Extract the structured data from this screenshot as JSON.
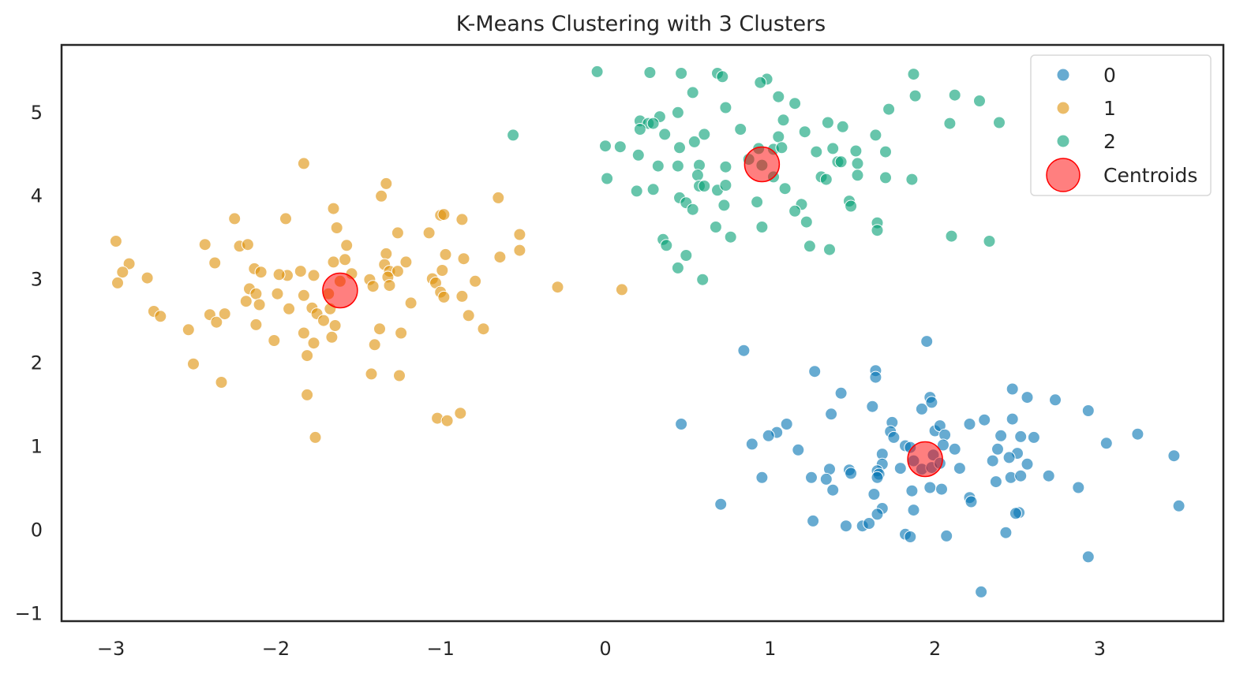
{
  "chart_data": {
    "type": "scatter",
    "title": "K-Means Clustering with 3 Clusters",
    "xlabel": "",
    "ylabel": "",
    "xlim": [
      -3.3,
      3.75
    ],
    "ylim": [
      -1.1,
      5.8
    ],
    "xticks": [
      -3,
      -2,
      -1,
      0,
      1,
      2,
      3
    ],
    "xtick_labels": [
      "−3",
      "−2",
      "−1",
      "0",
      "1",
      "2",
      "3"
    ],
    "yticks": [
      -1,
      0,
      1,
      2,
      3,
      4,
      5
    ],
    "ytick_labels": [
      "−1",
      "0",
      "1",
      "2",
      "3",
      "4",
      "5"
    ],
    "grid": false,
    "legend_position": "top-right",
    "series": [
      {
        "name": "0",
        "label": "0",
        "color": "#0173b2",
        "points": [
          [
            1.95,
            2.25
          ],
          [
            0.84,
            2.14
          ],
          [
            1.27,
            1.89
          ],
          [
            1.64,
            1.9
          ],
          [
            1.64,
            1.82
          ],
          [
            2.47,
            1.68
          ],
          [
            2.56,
            1.58
          ],
          [
            1.43,
            1.63
          ],
          [
            1.97,
            1.58
          ],
          [
            1.98,
            1.52
          ],
          [
            1.92,
            1.44
          ],
          [
            1.62,
            1.47
          ],
          [
            2.73,
            1.55
          ],
          [
            2.93,
            1.42
          ],
          [
            1.37,
            1.38
          ],
          [
            2.3,
            1.31
          ],
          [
            2.47,
            1.32
          ],
          [
            0.46,
            1.26
          ],
          [
            1.1,
            1.26
          ],
          [
            1.74,
            1.28
          ],
          [
            2.0,
            1.18
          ],
          [
            2.21,
            1.26
          ],
          [
            2.03,
            1.24
          ],
          [
            1.04,
            1.16
          ],
          [
            0.99,
            1.12
          ],
          [
            1.73,
            1.17
          ],
          [
            1.75,
            1.1
          ],
          [
            2.06,
            1.13
          ],
          [
            2.4,
            1.12
          ],
          [
            2.52,
            1.11
          ],
          [
            2.6,
            1.1
          ],
          [
            3.23,
            1.14
          ],
          [
            0.89,
            1.02
          ],
          [
            1.17,
            0.95
          ],
          [
            1.82,
            1.0
          ],
          [
            1.85,
            0.98
          ],
          [
            2.05,
            1.01
          ],
          [
            1.99,
            0.89
          ],
          [
            1.87,
            0.82
          ],
          [
            1.68,
            0.9
          ],
          [
            1.68,
            0.78
          ],
          [
            2.12,
            0.96
          ],
          [
            2.38,
            0.96
          ],
          [
            2.5,
            0.91
          ],
          [
            3.04,
            1.03
          ],
          [
            3.45,
            0.88
          ],
          [
            2.35,
            0.82
          ],
          [
            2.45,
            0.86
          ],
          [
            2.56,
            0.78
          ],
          [
            1.36,
            0.72
          ],
          [
            1.48,
            0.71
          ],
          [
            1.49,
            0.67
          ],
          [
            1.65,
            0.7
          ],
          [
            1.66,
            0.66
          ],
          [
            1.65,
            0.62
          ],
          [
            1.79,
            0.73
          ],
          [
            1.92,
            0.72
          ],
          [
            1.98,
            0.74
          ],
          [
            2.03,
            0.79
          ],
          [
            2.15,
            0.73
          ],
          [
            0.95,
            0.62
          ],
          [
            1.25,
            0.62
          ],
          [
            1.34,
            0.6
          ],
          [
            2.46,
            0.62
          ],
          [
            2.52,
            0.64
          ],
          [
            2.69,
            0.64
          ],
          [
            2.37,
            0.57
          ],
          [
            1.38,
            0.47
          ],
          [
            1.63,
            0.42
          ],
          [
            1.86,
            0.46
          ],
          [
            1.97,
            0.5
          ],
          [
            2.04,
            0.48
          ],
          [
            2.21,
            0.38
          ],
          [
            2.22,
            0.33
          ],
          [
            2.87,
            0.5
          ],
          [
            0.7,
            0.3
          ],
          [
            1.68,
            0.25
          ],
          [
            1.65,
            0.18
          ],
          [
            1.87,
            0.23
          ],
          [
            2.51,
            0.2
          ],
          [
            2.49,
            0.19
          ],
          [
            3.48,
            0.28
          ],
          [
            1.26,
            0.1
          ],
          [
            1.46,
            0.04
          ],
          [
            1.56,
            0.04
          ],
          [
            1.6,
            0.07
          ],
          [
            1.82,
            -0.06
          ],
          [
            1.85,
            -0.09
          ],
          [
            2.07,
            -0.08
          ],
          [
            2.43,
            -0.04
          ],
          [
            2.93,
            -0.33
          ],
          [
            2.28,
            -0.75
          ]
        ]
      },
      {
        "name": "1",
        "label": "1",
        "color": "#de8f05",
        "points": [
          [
            -1.83,
            4.38
          ],
          [
            -1.33,
            4.14
          ],
          [
            -1.36,
            3.99
          ],
          [
            -0.65,
            3.97
          ],
          [
            -1.65,
            3.84
          ],
          [
            -2.25,
            3.72
          ],
          [
            -1.94,
            3.72
          ],
          [
            -1.0,
            3.76
          ],
          [
            -0.98,
            3.77
          ],
          [
            -0.87,
            3.71
          ],
          [
            -1.63,
            3.61
          ],
          [
            -1.26,
            3.55
          ],
          [
            -1.07,
            3.55
          ],
          [
            -0.52,
            3.53
          ],
          [
            -2.97,
            3.45
          ],
          [
            -2.43,
            3.41
          ],
          [
            -2.22,
            3.39
          ],
          [
            -2.17,
            3.41
          ],
          [
            -1.57,
            3.4
          ],
          [
            -0.52,
            3.34
          ],
          [
            -1.33,
            3.3
          ],
          [
            -0.97,
            3.29
          ],
          [
            -0.64,
            3.26
          ],
          [
            -1.58,
            3.23
          ],
          [
            -1.65,
            3.2
          ],
          [
            -1.21,
            3.2
          ],
          [
            -0.86,
            3.24
          ],
          [
            -2.89,
            3.18
          ],
          [
            -2.37,
            3.19
          ],
          [
            -1.34,
            3.17
          ],
          [
            -1.31,
            3.09
          ],
          [
            -0.99,
            3.1
          ],
          [
            -2.93,
            3.08
          ],
          [
            -2.13,
            3.12
          ],
          [
            -2.09,
            3.08
          ],
          [
            -1.85,
            3.09
          ],
          [
            -1.77,
            3.04
          ],
          [
            -1.93,
            3.04
          ],
          [
            -1.98,
            3.05
          ],
          [
            -1.54,
            3.06
          ],
          [
            -1.26,
            3.09
          ],
          [
            -2.78,
            3.01
          ],
          [
            -1.32,
            3.02
          ],
          [
            -1.43,
            2.99
          ],
          [
            -1.05,
            3.0
          ],
          [
            -1.03,
            2.95
          ],
          [
            -0.79,
            2.97
          ],
          [
            -2.96,
            2.95
          ],
          [
            -1.61,
            2.97
          ],
          [
            -1.31,
            2.92
          ],
          [
            -0.29,
            2.9
          ],
          [
            0.1,
            2.87
          ],
          [
            -2.16,
            2.88
          ],
          [
            -2.12,
            2.82
          ],
          [
            -1.99,
            2.82
          ],
          [
            -1.83,
            2.8
          ],
          [
            -1.68,
            2.82
          ],
          [
            -1.41,
            2.91
          ],
          [
            -1.0,
            2.84
          ],
          [
            -2.18,
            2.73
          ],
          [
            -2.1,
            2.69
          ],
          [
            -1.92,
            2.64
          ],
          [
            -1.78,
            2.65
          ],
          [
            -1.67,
            2.64
          ],
          [
            -1.18,
            2.71
          ],
          [
            -0.98,
            2.78
          ],
          [
            -0.87,
            2.79
          ],
          [
            -2.74,
            2.61
          ],
          [
            -2.7,
            2.55
          ],
          [
            -2.4,
            2.57
          ],
          [
            -2.36,
            2.48
          ],
          [
            -2.31,
            2.58
          ],
          [
            -1.75,
            2.58
          ],
          [
            -1.71,
            2.5
          ],
          [
            -0.83,
            2.56
          ],
          [
            -2.12,
            2.45
          ],
          [
            -1.64,
            2.44
          ],
          [
            -1.37,
            2.4
          ],
          [
            -0.74,
            2.4
          ],
          [
            -2.53,
            2.39
          ],
          [
            -1.83,
            2.35
          ],
          [
            -1.66,
            2.3
          ],
          [
            -1.24,
            2.35
          ],
          [
            -2.01,
            2.26
          ],
          [
            -1.77,
            2.23
          ],
          [
            -1.4,
            2.21
          ],
          [
            -1.81,
            2.08
          ],
          [
            -2.5,
            1.98
          ],
          [
            -1.42,
            1.86
          ],
          [
            -1.25,
            1.84
          ],
          [
            -2.33,
            1.76
          ],
          [
            -1.81,
            1.61
          ],
          [
            -0.88,
            1.39
          ],
          [
            -1.02,
            1.33
          ],
          [
            -0.96,
            1.3
          ],
          [
            -1.76,
            1.1
          ]
        ]
      },
      {
        "name": "2",
        "label": "2",
        "color": "#029e73",
        "points": [
          [
            -0.05,
            5.48
          ],
          [
            0.27,
            5.47
          ],
          [
            0.46,
            5.46
          ],
          [
            0.68,
            5.46
          ],
          [
            0.71,
            5.42
          ],
          [
            0.98,
            5.39
          ],
          [
            0.94,
            5.35
          ],
          [
            1.87,
            5.45
          ],
          [
            1.88,
            5.19
          ],
          [
            2.12,
            5.2
          ],
          [
            2.27,
            5.13
          ],
          [
            0.53,
            5.23
          ],
          [
            1.05,
            5.18
          ],
          [
            1.15,
            5.1
          ],
          [
            0.73,
            5.05
          ],
          [
            1.72,
            5.03
          ],
          [
            0.44,
            4.99
          ],
          [
            0.33,
            4.94
          ],
          [
            0.21,
            4.89
          ],
          [
            0.26,
            4.86
          ],
          [
            1.08,
            4.9
          ],
          [
            2.09,
            4.86
          ],
          [
            2.39,
            4.87
          ],
          [
            0.29,
            4.86
          ],
          [
            1.35,
            4.87
          ],
          [
            1.44,
            4.82
          ],
          [
            0.21,
            4.79
          ],
          [
            0.6,
            4.73
          ],
          [
            0.82,
            4.79
          ],
          [
            1.21,
            4.76
          ],
          [
            1.64,
            4.72
          ],
          [
            0.36,
            4.73
          ],
          [
            -0.56,
            4.72
          ],
          [
            1.05,
            4.7
          ],
          [
            0.54,
            4.64
          ],
          [
            0.45,
            4.57
          ],
          [
            0.0,
            4.59
          ],
          [
            0.09,
            4.58
          ],
          [
            0.93,
            4.56
          ],
          [
            1.02,
            4.55
          ],
          [
            1.28,
            4.52
          ],
          [
            1.38,
            4.56
          ],
          [
            1.07,
            4.57
          ],
          [
            1.52,
            4.53
          ],
          [
            1.7,
            4.52
          ],
          [
            0.2,
            4.48
          ],
          [
            0.87,
            4.43
          ],
          [
            1.41,
            4.4
          ],
          [
            1.43,
            4.4
          ],
          [
            1.53,
            4.38
          ],
          [
            0.32,
            4.35
          ],
          [
            0.44,
            4.35
          ],
          [
            0.57,
            4.36
          ],
          [
            0.73,
            4.34
          ],
          [
            0.95,
            4.36
          ],
          [
            0.01,
            4.2
          ],
          [
            0.56,
            4.24
          ],
          [
            1.02,
            4.22
          ],
          [
            1.31,
            4.22
          ],
          [
            1.34,
            4.19
          ],
          [
            1.53,
            4.24
          ],
          [
            1.7,
            4.21
          ],
          [
            1.86,
            4.19
          ],
          [
            0.19,
            4.05
          ],
          [
            0.29,
            4.07
          ],
          [
            0.57,
            4.11
          ],
          [
            0.6,
            4.11
          ],
          [
            0.68,
            4.06
          ],
          [
            0.73,
            4.12
          ],
          [
            1.09,
            4.08
          ],
          [
            0.45,
            3.97
          ],
          [
            0.49,
            3.91
          ],
          [
            0.53,
            3.83
          ],
          [
            0.72,
            3.88
          ],
          [
            0.92,
            3.92
          ],
          [
            1.19,
            3.89
          ],
          [
            1.48,
            3.93
          ],
          [
            1.49,
            3.87
          ],
          [
            1.15,
            3.81
          ],
          [
            1.22,
            3.68
          ],
          [
            1.65,
            3.67
          ],
          [
            1.65,
            3.58
          ],
          [
            0.67,
            3.62
          ],
          [
            0.95,
            3.62
          ],
          [
            0.76,
            3.5
          ],
          [
            0.35,
            3.47
          ],
          [
            0.37,
            3.4
          ],
          [
            1.24,
            3.39
          ],
          [
            1.36,
            3.35
          ],
          [
            2.1,
            3.51
          ],
          [
            2.33,
            3.45
          ],
          [
            0.49,
            3.28
          ],
          [
            0.44,
            3.13
          ],
          [
            0.59,
            2.99
          ]
        ]
      }
    ],
    "centroids": {
      "name": "Centroids",
      "label": "Centroids",
      "color": "#ff0000",
      "points": [
        [
          -1.61,
          2.86
        ],
        [
          0.95,
          4.37
        ],
        [
          1.94,
          0.84
        ]
      ]
    }
  }
}
